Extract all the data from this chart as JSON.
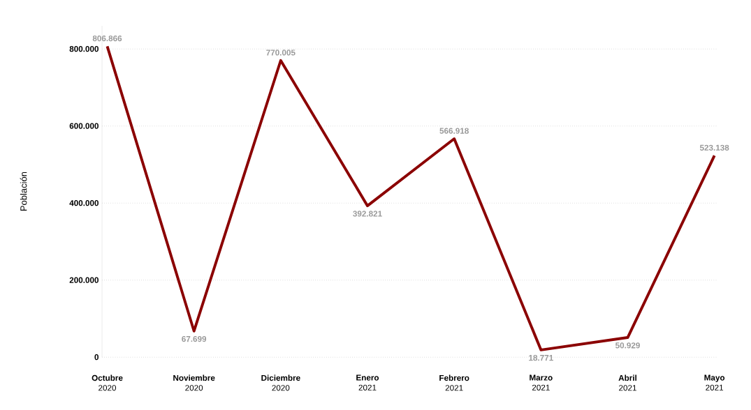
{
  "chart_data": {
    "type": "line",
    "ylabel": "Población",
    "categories": [
      "**Octubre** 2020",
      "**Noviembre** 2020",
      "**Diciembre** 2020",
      "**Enero** 2021",
      "**Febrero** 2021",
      "**Marzo** 2021",
      "**Abril** 2021",
      "**Mayo** 2021"
    ],
    "values": [
      806866,
      67699,
      770005,
      392821,
      566918,
      18771,
      50929,
      523138
    ],
    "value_labels": [
      "806.866",
      "67.699",
      "770.005",
      "392.821",
      "566.918",
      "18.771",
      "50.929",
      "523.138"
    ],
    "color": "#8b0000",
    "ylim": [
      0,
      860000
    ],
    "yticks": [
      {
        "value": 0,
        "label": "0"
      },
      {
        "value": 200000,
        "label": "200.000"
      },
      {
        "value": 400000,
        "label": "400.000"
      },
      {
        "value": 600000,
        "label": "600.000"
      },
      {
        "value": 800000,
        "label": "800.000"
      }
    ],
    "grid": "y",
    "marker": "none",
    "line_style": "solid"
  }
}
